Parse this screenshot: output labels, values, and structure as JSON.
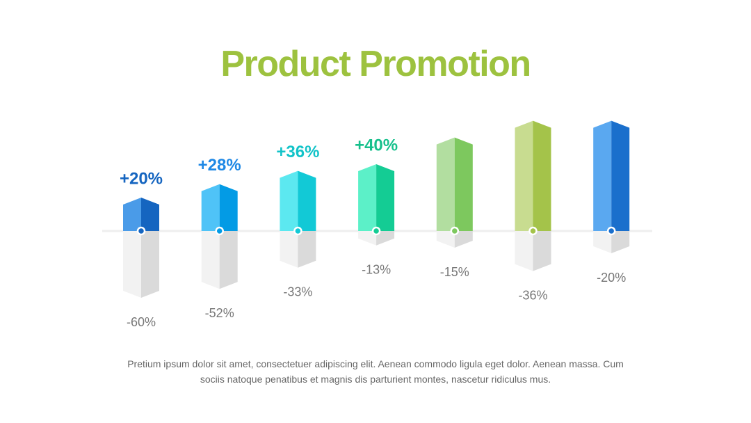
{
  "chart_data": {
    "type": "bar",
    "title": "Product Promotion",
    "series": [
      {
        "values": [
          20,
          28,
          36,
          40,
          56,
          66,
          66
        ],
        "value_labels": [
          "+20%",
          "+28%",
          "+36%",
          "+40%",
          null,
          null,
          null
        ],
        "colors": [
          "#4a9be8",
          "#4fc3f7",
          "#5ce8f0",
          "#5cf0c8",
          "#b2dea0",
          "#c8dc90",
          "#5aa8f0"
        ],
        "shade_colors": [
          "#1565c0",
          "#039be5",
          "#12c9d6",
          "#14cc94",
          "#7dc85e",
          "#a4c34a",
          "#1a6fcc"
        ],
        "label_colors": [
          "#1565c0",
          "#1e88e5",
          "#12c3c8",
          "#17c08c",
          null,
          null,
          null
        ]
      },
      {
        "values": [
          -60,
          -52,
          -33,
          -13,
          -15,
          -36,
          -20
        ],
        "value_labels": [
          "-60%",
          "-52%",
          "-33%",
          "-13%",
          "-15%",
          "-36%",
          "-20%"
        ],
        "colors": [
          "#f2f2f2",
          "#f2f2f2",
          "#f2f2f2",
          "#f2f2f2",
          "#f2f2f2",
          "#f2f2f2",
          "#f2f2f2"
        ],
        "shade_colors": [
          "#dadada",
          "#dadada",
          "#dadada",
          "#dadada",
          "#dadada",
          "#dadada",
          "#dadada"
        ],
        "label_colors": [
          "#777777",
          "#777777",
          "#777777",
          "#777777",
          "#777777",
          "#777777",
          "#777777"
        ]
      }
    ]
  },
  "caption": "Pretium ipsum dolor sit amet, consectetuer adipiscing elit. Aenean commodo ligula eget dolor. Aenean massa. Cum sociis natoque penatibus et magnis dis parturient montes, nascetur ridiculus mus."
}
